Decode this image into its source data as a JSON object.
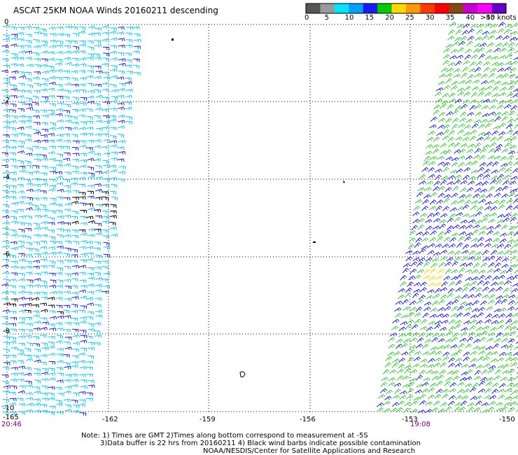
{
  "header": {
    "title": "ASCAT 25KM NOAA Winds 20160211 descending"
  },
  "legend": {
    "unit_label": ">50 knots",
    "speed_labels": [
      "0",
      "5",
      "10",
      "15",
      "20",
      "25",
      "30",
      "35",
      "40",
      "45"
    ],
    "colors": [
      "#555555",
      "#9a9a9a",
      "#00e5ff",
      "#00a0ff",
      "#1a1aff",
      "#00cc00",
      "#ffd800",
      "#ff9a00",
      "#ff3a00",
      "#ff0000",
      "#8b4513",
      "#cc00cc",
      "#ff00ff",
      "#6a00c8"
    ]
  },
  "axes": {
    "lat_labels": [
      "0",
      "-2",
      "-4",
      "-6",
      "-8",
      "-10"
    ],
    "lon_labels": [
      "-165",
      "-162",
      "-159",
      "-156",
      "-153",
      "-150"
    ],
    "grid": true
  },
  "swaths": {
    "left_time": "20:46",
    "right_time": "19:08",
    "left_color": "#00ccff",
    "right_colors": [
      "#33cc33",
      "#1a1aff"
    ]
  },
  "footer": {
    "note1": "Note: 1) Times are GMT 2)Times along bottom correspond to measurement at -5S",
    "note2": "3)Data buffer is 22 hrs from 20160211 4) Black wind barbs indicate possible contamination",
    "credit": "NOAA/NESDIS/Center for Satellite Applications and Research"
  }
}
